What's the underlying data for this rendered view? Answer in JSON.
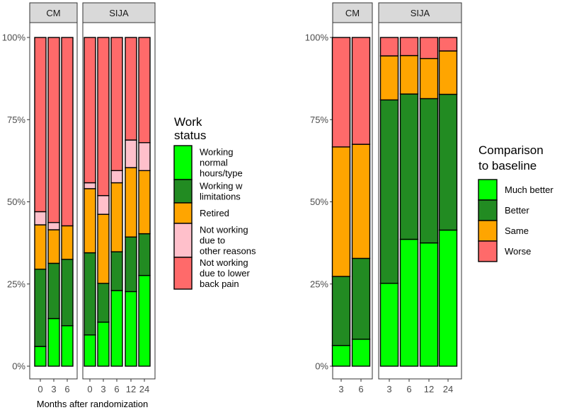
{
  "chart_data": [
    {
      "type": "bar",
      "stacked": true,
      "facets": [
        {
          "label": "CM",
          "categories": [
            "0",
            "3",
            "6"
          ],
          "series": [
            {
              "name": "Working normal hours/type",
              "values": [
                6,
                14.5,
                12.3
              ]
            },
            {
              "name": "Working w limitations",
              "values": [
                23.5,
                16.8,
                20.2
              ]
            },
            {
              "name": "Retired",
              "values": [
                13.5,
                10.2,
                10.2
              ]
            },
            {
              "name": "Not working due to other reasons",
              "values": [
                4,
                2.2,
                0
              ]
            },
            {
              "name": "Not working due to lower back pain",
              "values": [
                53,
                56.3,
                57.3
              ]
            }
          ]
        },
        {
          "label": "SIJA",
          "categories": [
            "0",
            "3",
            "6",
            "12",
            "24"
          ],
          "series": [
            {
              "name": "Working normal hours/type",
              "values": [
                9.5,
                13.4,
                23,
                22.7,
                27.6
              ]
            },
            {
              "name": "Working w limitations",
              "values": [
                25,
                11.8,
                11.8,
                16.6,
                12.7
              ]
            },
            {
              "name": "Retired",
              "values": [
                19.5,
                21,
                21,
                21.1,
                19.2
              ]
            },
            {
              "name": "Not working due to other reasons",
              "values": [
                1.8,
                5.7,
                3.7,
                8.4,
                8.5
              ]
            },
            {
              "name": "Not working due to lower back pain",
              "values": [
                44.2,
                48.1,
                40.5,
                31.2,
                32
              ]
            }
          ]
        }
      ],
      "xlabel": "Months after randomization",
      "ylabel": "",
      "ylim": [
        0,
        100
      ],
      "yticks": [
        "0%",
        "25%",
        "50%",
        "75%",
        "100%"
      ],
      "legend": {
        "title": "Work status",
        "placement": "right",
        "entries": [
          {
            "label": "Working normal hours/type",
            "color": "#00ff00"
          },
          {
            "label": "Working w limitations",
            "color": "#228b22"
          },
          {
            "label": "Retired",
            "color": "#ffa500"
          },
          {
            "label": "Not working due to other reasons",
            "color": "#ffc0cb"
          },
          {
            "label": "Not working due to lower back pain",
            "color": "#ff6a6a"
          }
        ]
      },
      "grid": false
    },
    {
      "type": "bar",
      "stacked": true,
      "facets": [
        {
          "label": "CM",
          "categories": [
            "3",
            "6"
          ],
          "series": [
            {
              "name": "Much better",
              "values": [
                6.3,
                8.2
              ]
            },
            {
              "name": "Better",
              "values": [
                21,
                24.6
              ]
            },
            {
              "name": "Same",
              "values": [
                39.4,
                34.7
              ]
            },
            {
              "name": "Worse",
              "values": [
                33.3,
                32.5
              ]
            }
          ]
        },
        {
          "label": "SIJA",
          "categories": [
            "3",
            "6",
            "12",
            "24"
          ],
          "series": [
            {
              "name": "Much better",
              "values": [
                25.2,
                38.6,
                37.5,
                41.4
              ]
            },
            {
              "name": "Better",
              "values": [
                55.8,
                44.2,
                43.9,
                41.3
              ]
            },
            {
              "name": "Same",
              "values": [
                13.4,
                11.7,
                12.2,
                13.2
              ]
            },
            {
              "name": "Worse",
              "values": [
                5.6,
                5.5,
                6.4,
                4.1
              ]
            }
          ]
        }
      ],
      "xlabel": "",
      "ylabel": "",
      "ylim": [
        0,
        100
      ],
      "yticks": [
        "0%",
        "25%",
        "50%",
        "75%",
        "100%"
      ],
      "legend": {
        "title": "Comparison to baseline",
        "placement": "right",
        "entries": [
          {
            "label": "Much better",
            "color": "#00ff00"
          },
          {
            "label": "Better",
            "color": "#228b22"
          },
          {
            "label": "Same",
            "color": "#ffa500"
          },
          {
            "label": "Worse",
            "color": "#ff6a6a"
          }
        ]
      },
      "grid": false
    }
  ]
}
